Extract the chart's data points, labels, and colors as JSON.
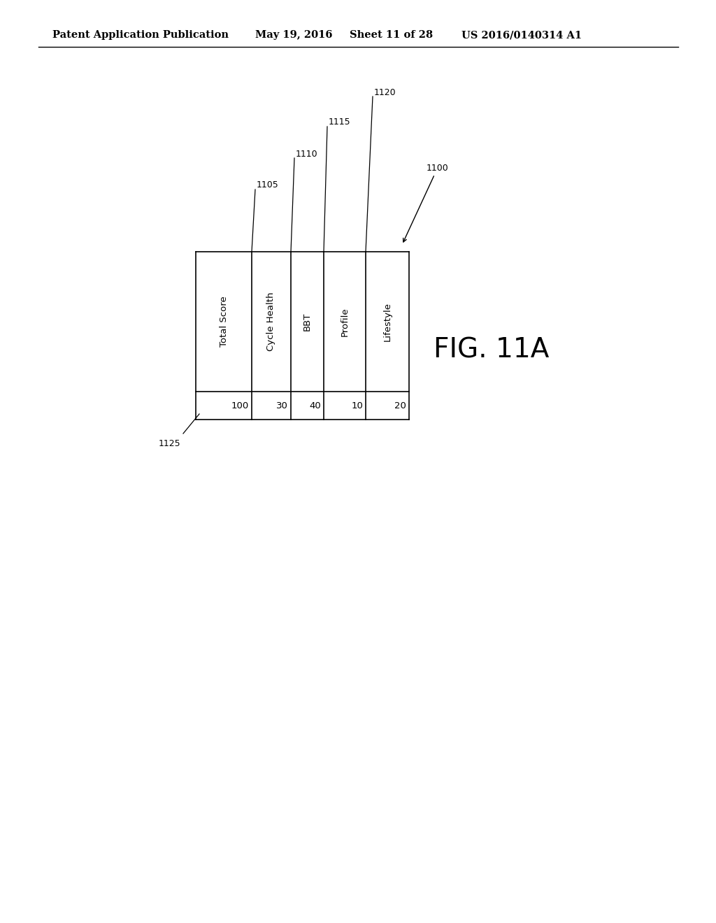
{
  "header_text": "Patent Application Publication",
  "date_text": "May 19, 2016",
  "sheet_text": "Sheet 11 of 28",
  "patent_text": "US 2016/0140314 A1",
  "fig_label": "FIG. 11A",
  "label_1100": "1100",
  "label_1125": "1125",
  "label_1105": "1105",
  "label_1110": "1110",
  "label_1115": "1115",
  "label_1120": "1120",
  "columns": [
    "Total Score",
    "Cycle Health",
    "BBT",
    "Profile",
    "Lifestyle"
  ],
  "row1_values": [
    "100",
    "30",
    "40",
    "10",
    "20"
  ],
  "background_color": "#ffffff",
  "text_color": "#000000"
}
